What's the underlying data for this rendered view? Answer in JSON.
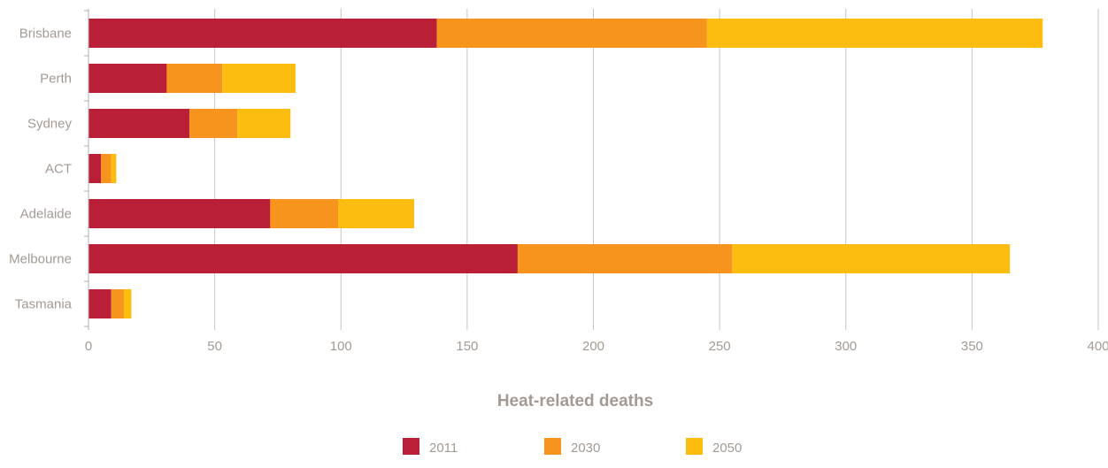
{
  "chart_data": {
    "type": "bar",
    "orientation": "horizontal",
    "stacked": true,
    "title": "",
    "xlabel": "Heat-related deaths",
    "ylabel": "",
    "xlim": [
      0,
      400
    ],
    "xticks": [
      0,
      50,
      100,
      150,
      200,
      250,
      300,
      350,
      400
    ],
    "grid": "vertical",
    "legend": "bottom-center",
    "categories": [
      "Brisbane",
      "Perth",
      "Sydney",
      "ACT",
      "Adelaide",
      "Melbourne",
      "Tasmania"
    ],
    "series": [
      {
        "name": "2011",
        "color": "#b91f36",
        "values": [
          138,
          31,
          40,
          5,
          72,
          170,
          9
        ]
      },
      {
        "name": "2030",
        "color": "#f7941d",
        "values": [
          107,
          22,
          19,
          4,
          27,
          85,
          5
        ]
      },
      {
        "name": "2050",
        "color": "#fdbd10",
        "values": [
          133,
          29,
          21,
          2,
          30,
          110,
          3
        ]
      }
    ]
  }
}
